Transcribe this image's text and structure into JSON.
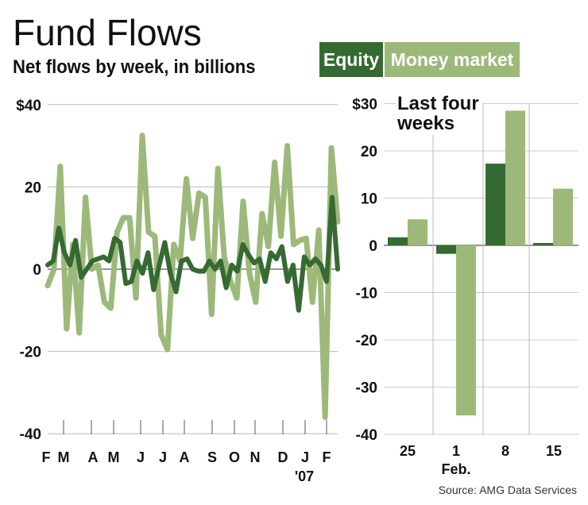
{
  "header": {
    "title": "Fund Flows",
    "subtitle": "Net flows by week, in billions"
  },
  "legend": {
    "equity": {
      "label": "Equity",
      "color": "#356a32"
    },
    "money_market": {
      "label": "Money market",
      "color": "#9cb97a"
    }
  },
  "inset": {
    "title_line1": "Last four",
    "title_line2": "weeks"
  },
  "source": "Source: AMG Data Services",
  "chart_data": [
    {
      "type": "line",
      "title": "Net flows by week, in billions",
      "xlabel": "",
      "ylabel": "",
      "ylim": [
        -40,
        40
      ],
      "yticks": [
        "$40",
        "20",
        "0",
        "-20",
        "-40"
      ],
      "x_tick_labels": [
        "F",
        "M",
        "A",
        "M",
        "J",
        "J",
        "A",
        "S",
        "O",
        "N",
        "D",
        "J",
        "F"
      ],
      "x_year_annotation": "'07",
      "grid": true,
      "series": [
        {
          "name": "Equity",
          "color": "#356a32",
          "values": [
            1,
            2,
            10,
            4,
            1,
            7,
            -2,
            0,
            2,
            2.5,
            3,
            2,
            7.5,
            6.5,
            -3.5,
            -3,
            2,
            -1,
            4,
            -5,
            1,
            6.5,
            -1,
            -5.5,
            2,
            2.5,
            0,
            -0.5,
            -0.5,
            2,
            0,
            2,
            -4.5,
            1,
            -0.5,
            6,
            3.5,
            1.5,
            2.5,
            -3,
            4,
            2.5,
            5.5,
            -3,
            1,
            -10,
            3,
            1,
            2.5,
            1,
            -3,
            17.5,
            0
          ]
        },
        {
          "name": "Money market",
          "color": "#9cb97a",
          "values": [
            -4,
            0,
            25,
            -14.5,
            6,
            -15.5,
            17.5,
            0,
            1,
            -8,
            -9.5,
            9,
            12.5,
            12.5,
            -7,
            32.5,
            9,
            8,
            -16,
            -19.5,
            6,
            2,
            22,
            7.5,
            18.5,
            17.5,
            -11,
            24.5,
            3,
            -3,
            -7,
            16.5,
            -1,
            -8,
            13.5,
            5.5,
            26,
            8,
            30,
            6,
            7,
            7.5,
            -8,
            9.5,
            -36,
            29.5,
            11.5
          ]
        }
      ]
    },
    {
      "type": "bar",
      "title": "Last four weeks",
      "categories": [
        "25",
        "1",
        "8",
        "15"
      ],
      "category_sublabel": {
        "1": "Feb."
      },
      "ylim": [
        -40,
        30
      ],
      "yticks": [
        "$30",
        "20",
        "10",
        "0",
        "-10",
        "-20",
        "-30",
        "-40"
      ],
      "grid": true,
      "series": [
        {
          "name": "Equity",
          "color": "#356a32",
          "values": [
            1.7,
            -1.8,
            17.3,
            0.5
          ]
        },
        {
          "name": "Money market",
          "color": "#9cb97a",
          "values": [
            5.5,
            -36,
            28.5,
            12
          ]
        }
      ]
    }
  ]
}
